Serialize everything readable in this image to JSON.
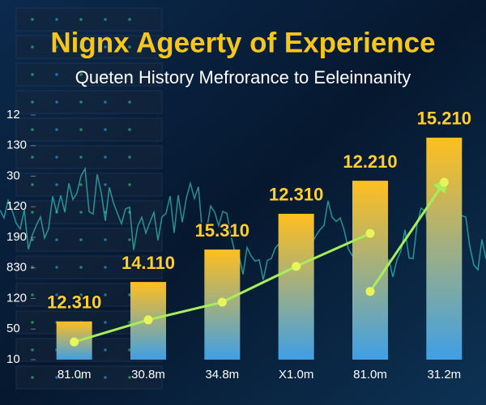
{
  "chart_data": {
    "type": "bar",
    "title": "Nignx Ageerty of Experience",
    "subtitle": "Queten History Mefrorance to Eeleinnanity",
    "categories": [
      "81.0m",
      "30.8m",
      "34.8m",
      "X1.0m",
      "81.0m",
      "31.2m"
    ],
    "values": [
      1.25,
      2.54,
      3.6,
      4.77,
      5.85,
      7.26
    ],
    "bar_labels": [
      "12.310",
      "14.110",
      "15.310",
      "12.310",
      "12.210",
      "15.210"
    ],
    "lines": [
      {
        "color": "#a8ee5a",
        "values": [
          0.58,
          1.3,
          1.88,
          3.05,
          4.13,
          null
        ]
      },
      {
        "color": "#a8ee5a",
        "values": [
          null,
          null,
          null,
          null,
          2.23,
          5.8
        ]
      }
    ],
    "ylim": [
      0,
      8
    ],
    "yticks": [
      {
        "value": 0,
        "label": "10"
      },
      {
        "value": 1,
        "label": "50"
      },
      {
        "value": 2,
        "label": "120"
      },
      {
        "value": 3,
        "label": "830"
      },
      {
        "value": 4,
        "label": "190"
      },
      {
        "value": 5,
        "label": "120"
      },
      {
        "value": 6,
        "label": "30"
      },
      {
        "value": 7,
        "label": "130"
      },
      {
        "value": 8,
        "label": "12"
      }
    ],
    "bar_gradient": [
      "#ffbf1f",
      "#3f9fe6"
    ]
  }
}
